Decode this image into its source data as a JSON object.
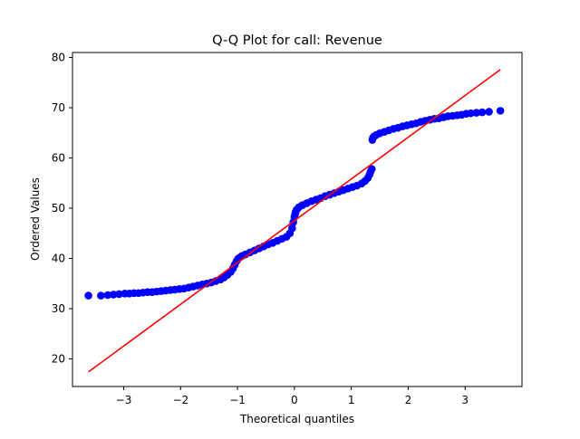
{
  "chart_data": {
    "type": "scatter",
    "title": "Q-Q Plot for call: Revenue",
    "xlabel": "Theoretical quantiles",
    "ylabel": "Ordered Values",
    "xlim": [
      -3.9,
      4.0
    ],
    "ylim": [
      14.5,
      81.0
    ],
    "xticks": [
      -3,
      -2,
      -1,
      0,
      1,
      2,
      3
    ],
    "xtick_labels": [
      "−3",
      "−2",
      "−1",
      "0",
      "1",
      "2",
      "3"
    ],
    "yticks": [
      20,
      30,
      40,
      50,
      60,
      70,
      80
    ],
    "ytick_labels": [
      "20",
      "30",
      "40",
      "50",
      "60",
      "70",
      "80"
    ],
    "grid": false,
    "marker_color": "#0000ff",
    "line_color": "#ff0000",
    "series": [
      {
        "kind": "points",
        "x": [
          -3.62,
          -3.4,
          -3.28,
          -3.18,
          -3.08,
          -2.98,
          -2.9,
          -2.82,
          -2.74,
          -2.66,
          -2.58,
          -2.5,
          -2.42,
          -2.34,
          -2.26,
          -2.18,
          -2.1,
          -2.02,
          -1.94,
          -1.86,
          -1.78,
          -1.7,
          -1.62,
          -1.54,
          -1.46,
          -1.38,
          -1.3,
          -1.24,
          -1.18,
          -1.12,
          -1.08,
          -1.05,
          -1.02,
          -0.99,
          -0.96,
          -0.92,
          -0.86,
          -0.78,
          -0.7,
          -0.62,
          -0.54,
          -0.46,
          -0.38,
          -0.3,
          -0.22,
          -0.14,
          -0.08,
          -0.04,
          -0.02,
          0.0,
          0.01,
          0.02,
          0.04,
          0.08,
          0.14,
          0.22,
          0.3,
          0.38,
          0.46,
          0.54,
          0.62,
          0.7,
          0.78,
          0.86,
          0.94,
          1.02,
          1.1,
          1.18,
          1.24,
          1.29,
          1.32,
          1.34,
          1.36,
          1.37,
          1.38,
          1.4,
          1.44,
          1.5,
          1.58,
          1.66,
          1.74,
          1.82,
          1.9,
          1.98,
          2.06,
          2.14,
          2.22,
          2.3,
          2.38,
          2.46,
          2.54,
          2.62,
          2.7,
          2.78,
          2.86,
          2.94,
          3.02,
          3.1,
          3.2,
          3.3,
          3.42,
          3.62
        ],
        "y": [
          32.6,
          32.6,
          32.7,
          32.8,
          32.9,
          33.0,
          33.0,
          33.1,
          33.1,
          33.2,
          33.3,
          33.3,
          33.4,
          33.5,
          33.6,
          33.7,
          33.8,
          33.9,
          34.0,
          34.2,
          34.4,
          34.6,
          34.8,
          35.0,
          35.2,
          35.5,
          35.8,
          36.2,
          36.7,
          37.3,
          38.0,
          38.7,
          39.4,
          39.9,
          40.2,
          40.5,
          40.8,
          41.2,
          41.6,
          42.0,
          42.4,
          42.8,
          43.1,
          43.5,
          43.9,
          44.3,
          45.0,
          46.0,
          47.2,
          48.2,
          48.7,
          49.2,
          49.7,
          50.2,
          50.6,
          51.0,
          51.4,
          51.7,
          52.0,
          52.4,
          52.7,
          53.0,
          53.3,
          53.6,
          53.9,
          54.2,
          54.5,
          54.9,
          55.4,
          56.0,
          56.7,
          57.3,
          57.8,
          63.6,
          64.0,
          64.3,
          64.6,
          64.9,
          65.2,
          65.5,
          65.8,
          66.0,
          66.3,
          66.5,
          66.7,
          66.9,
          67.2,
          67.4,
          67.6,
          67.8,
          67.9,
          68.1,
          68.3,
          68.4,
          68.5,
          68.6,
          68.8,
          68.9,
          69.0,
          69.1,
          69.2,
          69.4
        ]
      },
      {
        "kind": "fit-line",
        "x": [
          -3.62,
          3.62
        ],
        "y": [
          17.4,
          77.6
        ]
      }
    ]
  }
}
